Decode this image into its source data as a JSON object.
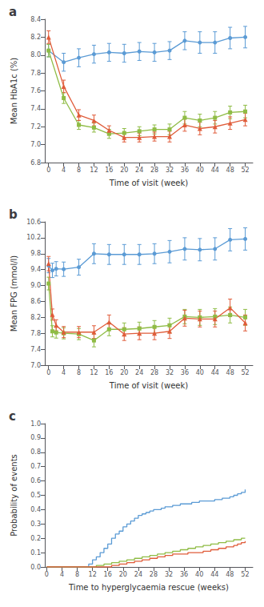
{
  "chart_data": [
    {
      "type": "line",
      "title": "a",
      "x_label": "Time of visit (week)",
      "y_label": "Mean HbA1c (%)",
      "xlim": [
        -1,
        54
      ],
      "ylim": [
        6.8,
        8.4
      ],
      "xticks": [
        0,
        4,
        8,
        12,
        16,
        20,
        24,
        28,
        32,
        36,
        40,
        44,
        48,
        52
      ],
      "yticks": [
        6.8,
        {
          "value": 7.0,
          "label": "7.0"
        },
        7.2,
        7.4,
        7.6,
        7.8,
        {
          "value": 8.0,
          "label": "8.0"
        },
        8.2,
        8.4
      ],
      "grid": false,
      "series": [
        {
          "color": "#5b9bd5",
          "marker": "circle",
          "x": [
            0,
            4,
            8,
            12,
            16,
            20,
            24,
            28,
            32,
            36,
            40,
            44,
            48,
            52
          ],
          "values": [
            8.05,
            7.92,
            7.97,
            8.01,
            8.03,
            8.02,
            8.04,
            8.03,
            8.05,
            8.16,
            8.14,
            8.14,
            8.19,
            8.2
          ],
          "yerr": [
            0.07,
            0.1,
            0.1,
            0.1,
            0.1,
            0.1,
            0.1,
            0.1,
            0.1,
            0.1,
            0.12,
            0.12,
            0.12,
            0.12
          ]
        },
        {
          "color": "#8fbc45",
          "marker": "square",
          "x": [
            0,
            4,
            8,
            12,
            16,
            20,
            24,
            28,
            32,
            36,
            40,
            44,
            48,
            52
          ],
          "values": [
            8.05,
            7.52,
            7.22,
            7.19,
            7.12,
            7.13,
            7.15,
            7.17,
            7.17,
            7.3,
            7.27,
            7.3,
            7.36,
            7.37
          ],
          "yerr": [
            0.07,
            0.06,
            0.05,
            0.05,
            0.05,
            0.05,
            0.05,
            0.05,
            0.06,
            0.07,
            0.07,
            0.07,
            0.07,
            0.07
          ]
        },
        {
          "color": "#e05c3a",
          "marker": "triangle",
          "x": [
            0,
            4,
            8,
            12,
            16,
            20,
            24,
            28,
            32,
            36,
            40,
            44,
            48,
            52
          ],
          "values": [
            8.2,
            7.65,
            7.33,
            7.27,
            7.16,
            7.08,
            7.08,
            7.09,
            7.09,
            7.22,
            7.18,
            7.2,
            7.24,
            7.28
          ],
          "yerr": [
            0.07,
            0.07,
            0.06,
            0.06,
            0.05,
            0.05,
            0.05,
            0.05,
            0.06,
            0.07,
            0.07,
            0.07,
            0.07,
            0.07
          ]
        }
      ]
    },
    {
      "type": "line",
      "title": "b",
      "x_label": "Time of visit (week)",
      "y_label": "Mean FPG (mmol/l)",
      "xlim": [
        -1,
        54
      ],
      "ylim": [
        7.0,
        10.6
      ],
      "xticks": [
        0,
        4,
        8,
        12,
        16,
        20,
        24,
        28,
        32,
        36,
        40,
        44,
        48,
        52
      ],
      "yticks": [
        {
          "value": 7.0,
          "label": "7.0"
        },
        7.4,
        7.8,
        8.2,
        8.6,
        {
          "value": 9.0,
          "label": "9.0"
        },
        9.4,
        9.8,
        10.2,
        10.6
      ],
      "grid": false,
      "series": [
        {
          "color": "#5b9bd5",
          "marker": "circle",
          "x": [
            0,
            1,
            2,
            4,
            8,
            12,
            16,
            20,
            24,
            28,
            32,
            36,
            40,
            44,
            48,
            52
          ],
          "values": [
            9.5,
            9.38,
            9.42,
            9.41,
            9.46,
            9.8,
            9.78,
            9.78,
            9.78,
            9.8,
            9.85,
            9.92,
            9.9,
            9.92,
            10.15,
            10.17
          ],
          "yerr": [
            0.18,
            0.18,
            0.18,
            0.18,
            0.2,
            0.25,
            0.25,
            0.25,
            0.25,
            0.25,
            0.28,
            0.28,
            0.28,
            0.28,
            0.28,
            0.28
          ]
        },
        {
          "color": "#8fbc45",
          "marker": "square",
          "x": [
            0,
            1,
            2,
            4,
            8,
            12,
            16,
            20,
            24,
            28,
            32,
            36,
            40,
            44,
            48,
            52
          ],
          "values": [
            9.05,
            7.85,
            7.82,
            7.8,
            7.78,
            7.62,
            7.9,
            7.9,
            7.92,
            7.96,
            8.0,
            8.22,
            8.2,
            8.22,
            8.26,
            8.2
          ],
          "yerr": [
            0.16,
            0.14,
            0.14,
            0.14,
            0.14,
            0.16,
            0.16,
            0.16,
            0.16,
            0.16,
            0.18,
            0.18,
            0.2,
            0.2,
            0.2,
            0.2
          ]
        },
        {
          "color": "#e05c3a",
          "marker": "triangle",
          "x": [
            0,
            1,
            2,
            4,
            8,
            12,
            16,
            20,
            24,
            28,
            32,
            36,
            40,
            44,
            48,
            52
          ],
          "values": [
            9.55,
            8.27,
            8.0,
            7.83,
            7.83,
            7.83,
            8.08,
            7.78,
            7.8,
            7.8,
            7.85,
            8.18,
            8.16,
            8.16,
            8.44,
            8.06
          ],
          "yerr": [
            0.18,
            0.14,
            0.14,
            0.14,
            0.14,
            0.16,
            0.18,
            0.16,
            0.16,
            0.16,
            0.18,
            0.2,
            0.2,
            0.2,
            0.22,
            0.2
          ]
        }
      ]
    },
    {
      "type": "step",
      "title": "c",
      "x_label": "Time to hyperglycaemia rescue (weeks)",
      "y_label": "Probability of events",
      "xlim": [
        -0.5,
        54
      ],
      "ylim": [
        0.0,
        1.0
      ],
      "xticks": [
        0,
        4,
        8,
        12,
        16,
        20,
        24,
        28,
        32,
        36,
        40,
        44,
        48,
        52
      ],
      "yticks": [
        {
          "value": 0.0,
          "label": "0.0"
        },
        0.1,
        0.2,
        0.3,
        0.4,
        0.5,
        0.6,
        0.7,
        0.8,
        0.9,
        {
          "value": 1.0,
          "label": "1.0"
        }
      ],
      "grid": false,
      "series": [
        {
          "color": "#5b9bd5",
          "x": [
            0,
            10,
            11,
            12,
            13,
            14,
            15,
            16,
            17,
            18,
            19,
            20,
            21,
            22,
            23,
            24,
            25,
            26,
            27,
            28,
            29,
            30,
            31,
            32,
            33,
            34,
            35,
            36,
            37,
            38,
            39,
            40,
            41,
            42,
            44,
            46,
            48,
            49,
            50,
            51,
            52
          ],
          "values": [
            0,
            0,
            0.02,
            0.05,
            0.07,
            0.1,
            0.13,
            0.16,
            0.2,
            0.23,
            0.25,
            0.28,
            0.3,
            0.32,
            0.34,
            0.36,
            0.37,
            0.38,
            0.39,
            0.4,
            0.4,
            0.41,
            0.42,
            0.42,
            0.43,
            0.43,
            0.44,
            0.44,
            0.44,
            0.45,
            0.45,
            0.46,
            0.46,
            0.46,
            0.47,
            0.48,
            0.49,
            0.5,
            0.51,
            0.52,
            0.54
          ]
        },
        {
          "color": "#8fbc45",
          "x": [
            0,
            12,
            13,
            15,
            17,
            19,
            21,
            23,
            25,
            27,
            29,
            31,
            33,
            35,
            37,
            39,
            41,
            43,
            45,
            47,
            49,
            51,
            52
          ],
          "values": [
            0,
            0,
            0.01,
            0.02,
            0.03,
            0.04,
            0.05,
            0.06,
            0.07,
            0.08,
            0.09,
            0.1,
            0.11,
            0.12,
            0.13,
            0.14,
            0.15,
            0.16,
            0.17,
            0.18,
            0.19,
            0.2,
            0.2
          ]
        },
        {
          "color": "#e05c3a",
          "x": [
            0,
            15,
            17,
            19,
            21,
            23,
            25,
            27,
            29,
            31,
            33,
            35,
            37,
            39,
            41,
            43,
            45,
            47,
            49,
            50,
            51,
            52
          ],
          "values": [
            0,
            0,
            0.01,
            0.02,
            0.03,
            0.04,
            0.05,
            0.06,
            0.07,
            0.08,
            0.09,
            0.09,
            0.1,
            0.1,
            0.11,
            0.12,
            0.13,
            0.14,
            0.15,
            0.16,
            0.17,
            0.18
          ]
        }
      ]
    }
  ]
}
